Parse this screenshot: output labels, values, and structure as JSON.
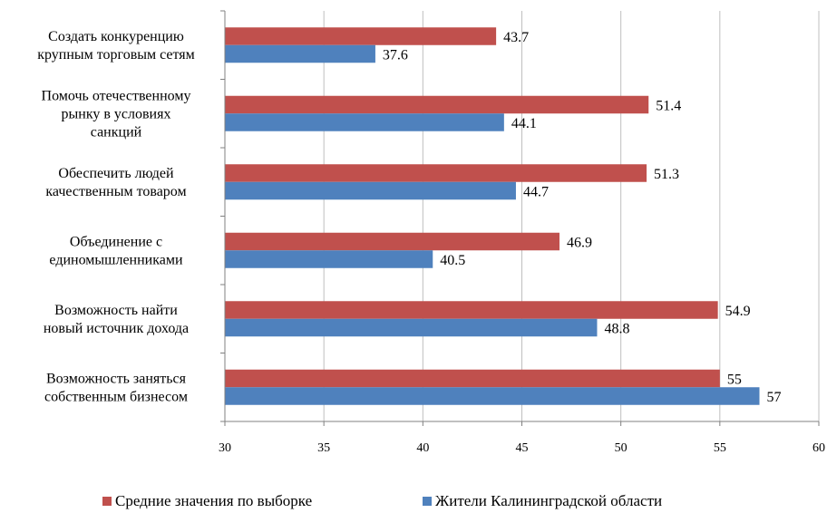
{
  "chart_data": {
    "type": "bar",
    "orientation": "horizontal",
    "categories": [
      [
        "Создать конкуренцию",
        "крупным торговым сетям"
      ],
      [
        "Помочь отечественному",
        "рынку в условиях",
        "санкций"
      ],
      [
        "Обеспечить людей",
        "качественным товаром"
      ],
      [
        "Объединение с",
        "единомышленниками"
      ],
      [
        "Возможность найти",
        "новый источник дохода"
      ],
      [
        "Возможность заняться",
        "собственным бизнесом"
      ]
    ],
    "series": [
      {
        "name": "Средние значения по выборке",
        "color": "#c0504d",
        "values": [
          43.7,
          51.4,
          51.3,
          46.9,
          54.9,
          55
        ]
      },
      {
        "name": "Жители Калининградской области",
        "color": "#4f81bd",
        "values": [
          37.6,
          44.1,
          44.7,
          40.5,
          48.8,
          57
        ]
      }
    ],
    "xlim": [
      30,
      60
    ],
    "xticks": [
      30,
      35,
      40,
      45,
      50,
      55,
      60
    ],
    "grid": true,
    "legend_position": "bottom"
  }
}
